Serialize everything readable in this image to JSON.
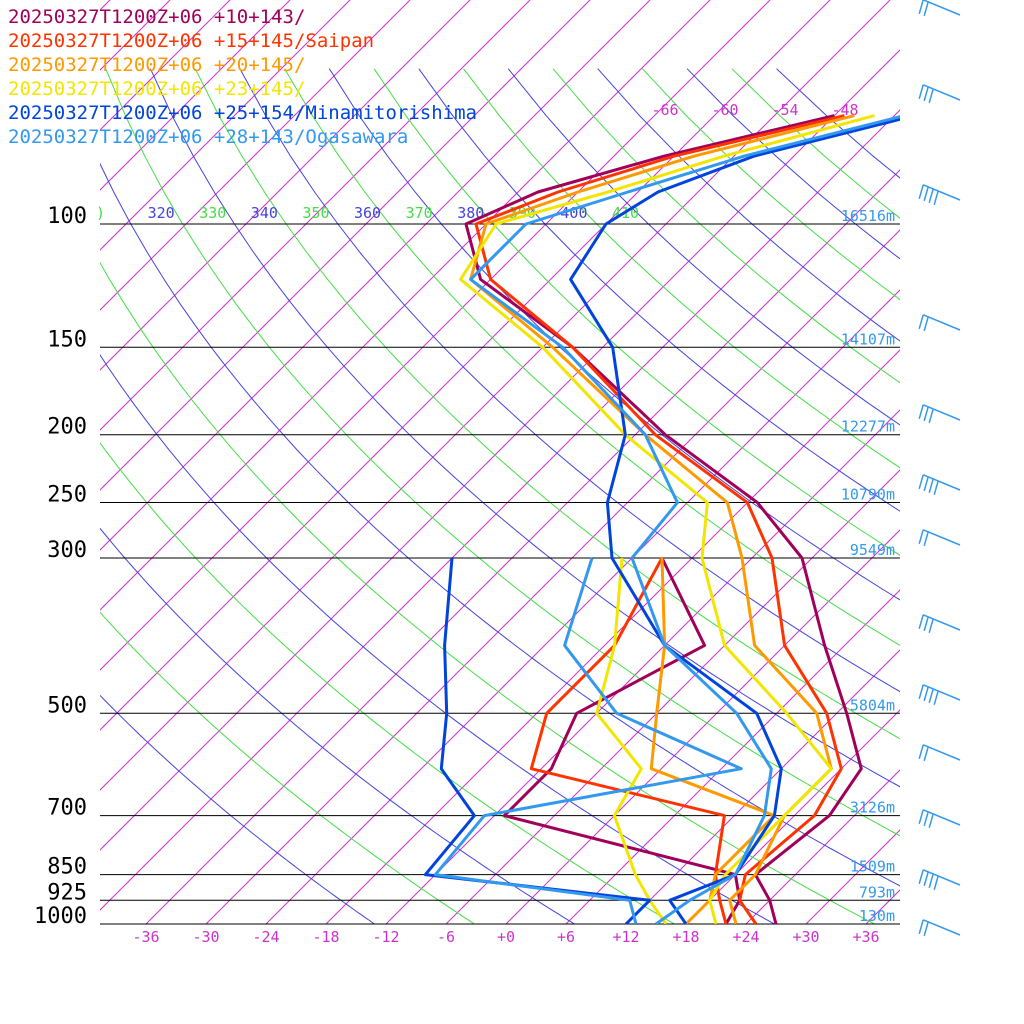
{
  "chart_data": {
    "type": "line",
    "subtype": "skew-T log-p sounding",
    "legend": [
      {
        "label": "20250327T1200Z+06 +10+143/",
        "color": "#a0005a"
      },
      {
        "label": "20250327T1200Z+06 +15+145/Saipan",
        "color": "#ff3300"
      },
      {
        "label": "20250327T1200Z+06 +20+145/",
        "color": "#ff9900"
      },
      {
        "label": "20250327T1200Z+06 +23+145/",
        "color": "#f2e600"
      },
      {
        "label": "20250327T1200Z+06 +25+154/Minamitorishima",
        "color": "#0044dd"
      },
      {
        "label": "20250327T1200Z+06 +28+143/Ogasawara",
        "color": "#3399ee"
      }
    ],
    "pressure_levels": [
      {
        "p": 100,
        "label": "100",
        "height": "16516m"
      },
      {
        "p": 150,
        "label": "150",
        "height": "14107m"
      },
      {
        "p": 200,
        "label": "200",
        "height": "12277m"
      },
      {
        "p": 250,
        "label": "250",
        "height": "10790m"
      },
      {
        "p": 300,
        "label": "300",
        "height": "9549m"
      },
      {
        "p": 500,
        "label": "500",
        "height": "5804m"
      },
      {
        "p": 700,
        "label": "700",
        "height": "3126m"
      },
      {
        "p": 850,
        "label": "850",
        "height": "1509m"
      },
      {
        "p": 925,
        "label": "925",
        "height": "793m"
      },
      {
        "p": 1000,
        "label": "1000",
        "height": "130m"
      }
    ],
    "temperature_ticks": [
      "-36",
      "-30",
      "-24",
      "-18",
      "-12",
      "-6",
      "+0",
      "+6",
      "+12",
      "+18",
      "+24",
      "+30",
      "+36"
    ],
    "isotherm_top_labels": [
      "-66",
      "-60",
      "-54",
      "-48"
    ],
    "theta_labels": [
      {
        "label": ")",
        "color": "#44dd44"
      },
      {
        "label": "320",
        "color": "#4444dd"
      },
      {
        "label": "330",
        "color": "#44dd44"
      },
      {
        "label": "340",
        "color": "#4444dd"
      },
      {
        "label": "350",
        "color": "#44dd44"
      },
      {
        "label": "360",
        "color": "#4444dd"
      },
      {
        "label": "370",
        "color": "#44dd44"
      },
      {
        "label": "380",
        "color": "#4444dd"
      },
      {
        "label": "390",
        "color": "#44dd44"
      },
      {
        "label": "400",
        "color": "#4444dd"
      },
      {
        "label": "410",
        "color": "#44dd44"
      }
    ],
    "xlim": [
      -36,
      36
    ],
    "ylim": [
      1000,
      100
    ],
    "series": [
      {
        "name": "20250327T1200Z+06 +10+143/",
        "color": "#a0005a",
        "temperature": [
          [
            1000,
            27
          ],
          [
            925,
            24
          ],
          [
            850,
            20
          ],
          [
            700,
            21.5
          ],
          [
            600,
            20
          ],
          [
            500,
            13
          ],
          [
            400,
            4
          ],
          [
            300,
            -7
          ],
          [
            250,
            -17
          ],
          [
            200,
            -33
          ],
          [
            150,
            -51
          ],
          [
            120,
            -67
          ],
          [
            100,
            -74
          ],
          [
            90,
            -70
          ],
          [
            80,
            -61
          ],
          [
            70,
            -48
          ]
        ],
        "dewpoint": [
          [
            1000,
            22
          ],
          [
            925,
            21
          ],
          [
            850,
            18
          ],
          [
            700,
            -11
          ],
          [
            600,
            -11
          ],
          [
            500,
            -14
          ],
          [
            400,
            -8
          ],
          [
            300,
            -21
          ]
        ]
      },
      {
        "name": "20250327T1200Z+06 +15+145/Saipan",
        "color": "#ff3300",
        "temperature": [
          [
            1000,
            25
          ],
          [
            925,
            21
          ],
          [
            850,
            19
          ],
          [
            700,
            20
          ],
          [
            600,
            18
          ],
          [
            500,
            11
          ],
          [
            400,
            0
          ],
          [
            300,
            -10
          ],
          [
            250,
            -18
          ],
          [
            200,
            -34
          ],
          [
            150,
            -51
          ],
          [
            120,
            -66
          ],
          [
            100,
            -73
          ],
          [
            90,
            -68
          ],
          [
            80,
            -60
          ],
          [
            70,
            -47
          ]
        ],
        "dewpoint": [
          [
            1000,
            22
          ],
          [
            925,
            19
          ],
          [
            850,
            16
          ],
          [
            700,
            11
          ],
          [
            600,
            -13
          ],
          [
            500,
            -17
          ],
          [
            400,
            -17
          ],
          [
            300,
            -21
          ]
        ]
      },
      {
        "name": "20250327T1200Z+06 +20+145/",
        "color": "#ff9900",
        "temperature": [
          [
            1000,
            23
          ],
          [
            925,
            20
          ],
          [
            850,
            20
          ],
          [
            700,
            17
          ],
          [
            600,
            17
          ],
          [
            500,
            10
          ],
          [
            400,
            -3
          ],
          [
            300,
            -13
          ],
          [
            250,
            -20
          ],
          [
            200,
            -35
          ],
          [
            150,
            -53
          ],
          [
            120,
            -68
          ],
          [
            100,
            -72
          ],
          [
            90,
            -66
          ],
          [
            80,
            -58
          ],
          [
            70,
            -46
          ]
        ],
        "dewpoint": [
          [
            1000,
            18
          ],
          [
            925,
            18
          ],
          [
            850,
            16
          ],
          [
            700,
            16
          ],
          [
            600,
            -1
          ],
          [
            500,
            -6
          ],
          [
            400,
            -12
          ],
          [
            300,
            -21
          ]
        ]
      },
      {
        "name": "20250327T1200Z+06 +23+145/",
        "color": "#f2e600",
        "temperature": [
          [
            1000,
            21
          ],
          [
            925,
            18
          ],
          [
            850,
            17
          ],
          [
            700,
            17
          ],
          [
            600,
            17
          ],
          [
            500,
            7
          ],
          [
            400,
            -6
          ],
          [
            300,
            -17
          ],
          [
            250,
            -22
          ],
          [
            200,
            -37
          ],
          [
            150,
            -54
          ],
          [
            120,
            -69
          ],
          [
            100,
            -71
          ],
          [
            90,
            -63
          ],
          [
            80,
            -55
          ],
          [
            70,
            -44
          ]
        ],
        "dewpoint": [
          [
            1000,
            16
          ],
          [
            925,
            12
          ],
          [
            850,
            8
          ],
          [
            700,
            0
          ],
          [
            600,
            -2
          ],
          [
            500,
            -12
          ],
          [
            400,
            -17
          ],
          [
            300,
            -25
          ]
        ]
      },
      {
        "name": "20250327T1200Z+06 +25+154/Minamitorishima",
        "color": "#0044dd",
        "temperature": [
          [
            1000,
            18
          ],
          [
            925,
            14
          ],
          [
            850,
            18
          ],
          [
            700,
            16
          ],
          [
            600,
            12
          ],
          [
            500,
            4
          ],
          [
            400,
            -12
          ],
          [
            300,
            -26
          ],
          [
            250,
            -32
          ],
          [
            200,
            -37
          ],
          [
            150,
            -47
          ],
          [
            120,
            -58
          ],
          [
            100,
            -60
          ],
          [
            90,
            -58
          ],
          [
            80,
            -52
          ],
          [
            70,
            -40
          ]
        ],
        "dewpoint": [
          [
            1000,
            12
          ],
          [
            925,
            12
          ],
          [
            850,
            -13
          ],
          [
            700,
            -14
          ],
          [
            600,
            -22
          ],
          [
            500,
            -27
          ],
          [
            400,
            -34
          ],
          [
            300,
            -42
          ]
        ]
      },
      {
        "name": "20250327T1200Z+06 +28+143/Ogasawara",
        "color": "#3399ee",
        "temperature": [
          [
            1000,
            15
          ],
          [
            925,
            16
          ],
          [
            850,
            18
          ],
          [
            700,
            15
          ],
          [
            600,
            11
          ],
          [
            500,
            2
          ],
          [
            400,
            -12
          ],
          [
            300,
            -24
          ],
          [
            250,
            -25
          ],
          [
            200,
            -35
          ],
          [
            150,
            -52
          ],
          [
            120,
            -68
          ],
          [
            100,
            -68
          ],
          [
            90,
            -61
          ],
          [
            80,
            -53
          ],
          [
            70,
            -41
          ]
        ],
        "dewpoint": [
          [
            1000,
            13
          ],
          [
            925,
            10
          ],
          [
            850,
            -12
          ],
          [
            700,
            -13
          ],
          [
            600,
            8
          ],
          [
            500,
            -10
          ],
          [
            400,
            -22
          ],
          [
            300,
            -28
          ]
        ]
      }
    ]
  }
}
